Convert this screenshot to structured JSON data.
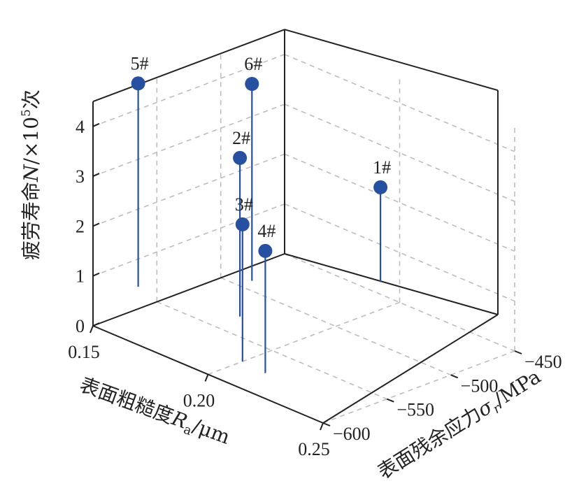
{
  "chart_data": {
    "type": "scatter",
    "plot3d": true,
    "z_axis": {
      "label_prefix": "疲劳寿命",
      "label_var": "N",
      "label_unit": "/×10",
      "label_exp": "5",
      "label_suffix": "次",
      "ticks": [
        "0",
        "1",
        "2",
        "3",
        "4"
      ],
      "range": [
        0,
        4.5
      ]
    },
    "x_axis": {
      "label_prefix": "表面粗糙度",
      "label_var": "R",
      "label_sub": "a",
      "label_unit": "/μm",
      "ticks": [
        "0.15",
        "0.20",
        "0.25"
      ],
      "range": [
        0.15,
        0.25
      ]
    },
    "y_axis": {
      "label_prefix": "表面残余应力",
      "label_var": "σ",
      "label_sub": "r",
      "label_unit": "/MPa",
      "ticks": [
        "−450",
        "−500",
        "−550",
        "−600"
      ],
      "range": [
        -600,
        -450
      ]
    },
    "points": [
      {
        "label": "5#",
        "ra": 0.138,
        "sigma": -543,
        "n": 4.08
      },
      {
        "label": "6#",
        "ra": 0.158,
        "sigma": -490,
        "n": 3.95
      },
      {
        "label": "2#",
        "ra": 0.175,
        "sigma": -530,
        "n": 3.18
      },
      {
        "label": "3#",
        "ra": 0.2,
        "sigma": -573,
        "n": 2.75
      },
      {
        "label": "4#",
        "ra": 0.211,
        "sigma": -575,
        "n": 2.45
      },
      {
        "label": "1#",
        "ra": 0.185,
        "sigma": -438,
        "n": 1.9
      }
    ],
    "grid": true,
    "marker_color": "#2850a0"
  }
}
